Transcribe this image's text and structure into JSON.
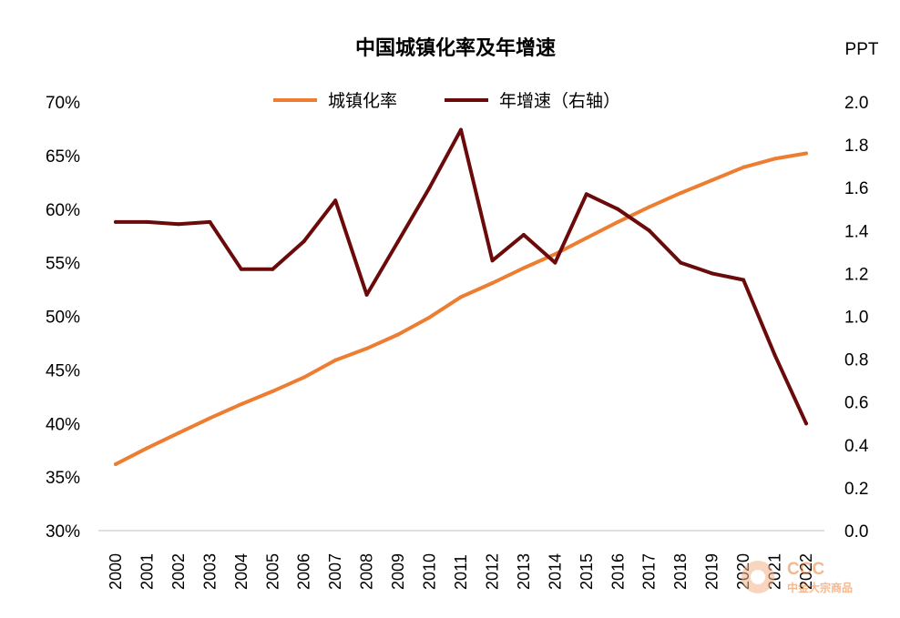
{
  "chart_data": {
    "type": "line",
    "title": "中国城镇化率及年增速",
    "categories": [
      "2000",
      "2001",
      "2002",
      "2003",
      "2004",
      "2005",
      "2006",
      "2007",
      "2008",
      "2009",
      "2010",
      "2011",
      "2012",
      "2013",
      "2014",
      "2015",
      "2016",
      "2017",
      "2018",
      "2019",
      "2020",
      "2021",
      "2022"
    ],
    "series": [
      {
        "name": "城镇化率",
        "axis": "left",
        "color": "#ED7D31",
        "values": [
          36.2,
          37.7,
          39.1,
          40.5,
          41.8,
          43.0,
          44.3,
          45.9,
          46.99,
          48.3,
          49.9,
          51.8,
          53.1,
          54.5,
          55.8,
          57.3,
          58.8,
          60.2,
          61.5,
          62.7,
          63.9,
          64.7,
          65.2
        ]
      },
      {
        "name": "年增速（右轴）",
        "axis": "right",
        "color": "#6B0A0A",
        "values": [
          1.44,
          1.44,
          1.43,
          1.44,
          1.22,
          1.22,
          1.35,
          1.54,
          1.1,
          1.35,
          1.6,
          1.87,
          1.26,
          1.38,
          1.25,
          1.57,
          1.5,
          1.4,
          1.25,
          1.2,
          1.17,
          0.82,
          0.5
        ]
      }
    ],
    "left_axis": {
      "ylim": [
        30,
        70
      ],
      "ticks": [
        "30%",
        "35%",
        "40%",
        "45%",
        "50%",
        "55%",
        "60%",
        "65%",
        "70%"
      ]
    },
    "right_axis": {
      "label": "PPT",
      "ylim": [
        0,
        2.0
      ],
      "ticks": [
        "0.0",
        "0.2",
        "0.4",
        "0.6",
        "0.8",
        "1.0",
        "1.2",
        "1.4",
        "1.6",
        "1.8",
        "2.0"
      ]
    },
    "legend_position": "top-center",
    "grid": false
  },
  "watermark": {
    "name": "CCC",
    "subtitle": "中金大宗商品"
  }
}
